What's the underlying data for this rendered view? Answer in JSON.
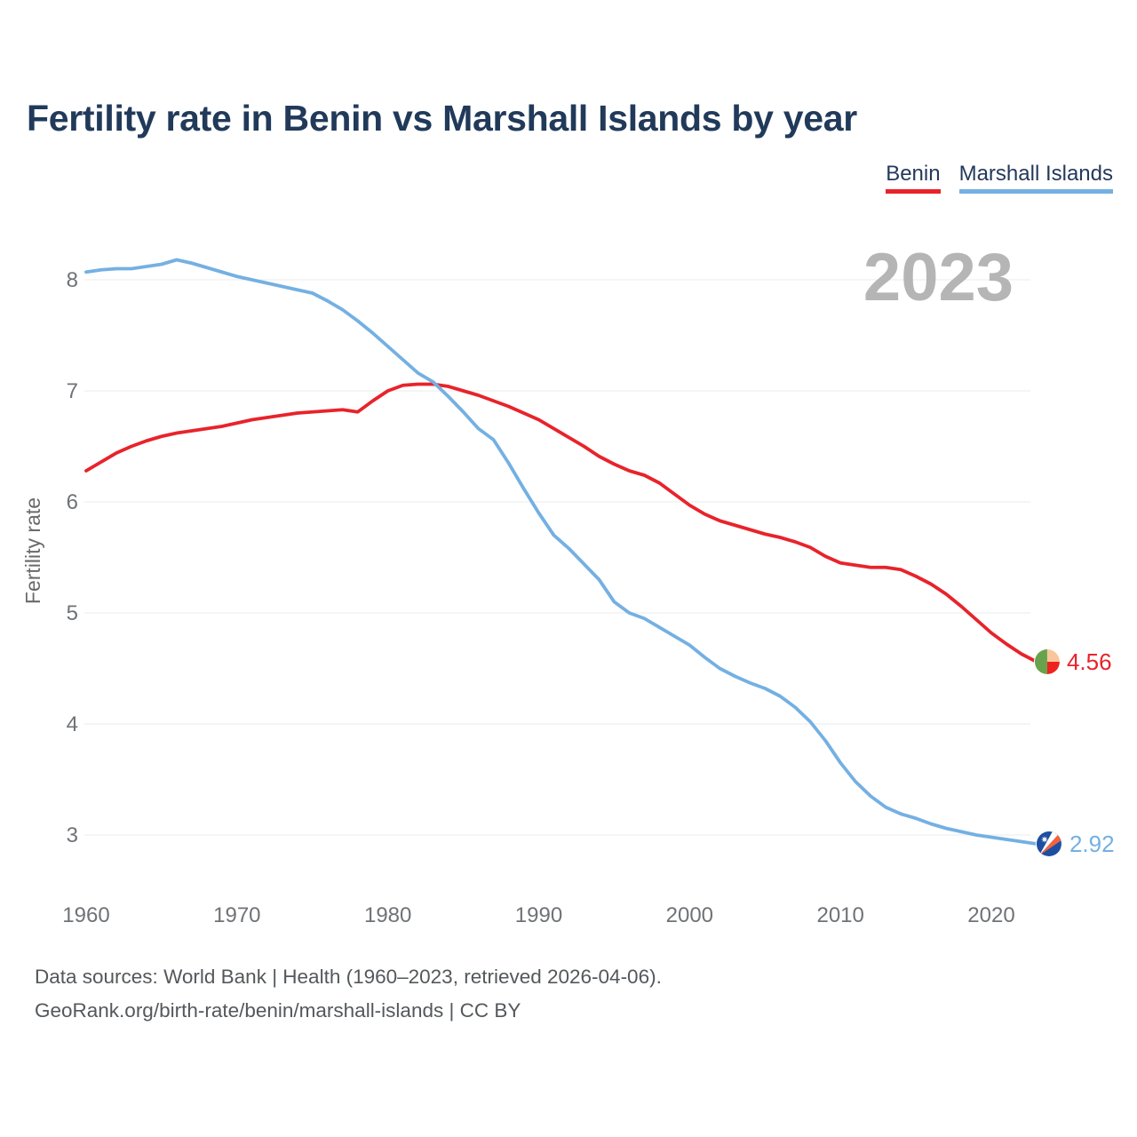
{
  "title": "Fertility rate in Benin vs Marshall Islands by year",
  "watermark_year": "2023",
  "legend": [
    {
      "label": "Benin",
      "color": "#e8232b"
    },
    {
      "label": "Marshall Islands",
      "color": "#74b0e2"
    }
  ],
  "icons": {
    "benin_flag": "benin-flag-icon",
    "marshall_islands_flag": "marshall-islands-flag-icon"
  },
  "colors": {
    "benin_line": "#e8232b",
    "marshall_line": "#74b0e2",
    "title_text": "#213a5a",
    "grid": "#ebebeb",
    "axis_text": "#6f7276",
    "watermark": "#b5b5b5",
    "footer_text": "#54585b",
    "benin_flag_green": "#68a24c",
    "benin_flag_peach": "#f9c69c",
    "benin_flag_red": "#ee2321",
    "marshall_flag_blue": "#1d4fa1",
    "marshall_flag_orange": "#f4633f"
  },
  "footer": {
    "line1": "Data sources: World Bank | Health (1960–2023, retrieved 2026-04-06).",
    "line2": "GeoRank.org/birth-rate/benin/marshall-islands | CC BY"
  },
  "chart_data": {
    "type": "line",
    "title": "Fertility rate in Benin vs Marshall Islands by year",
    "xlabel": "",
    "ylabel": "Fertility rate",
    "grid": "horizontal",
    "legend_position": "top-right",
    "current_year_label": "2023",
    "xlim": [
      1960,
      2023
    ],
    "ylim": [
      2.6,
      8.45
    ],
    "xticks": [
      1960,
      1970,
      1980,
      1990,
      2000,
      2010,
      2020
    ],
    "yticks": [
      3,
      4,
      5,
      6,
      7,
      8
    ],
    "x": [
      1960,
      1961,
      1962,
      1963,
      1964,
      1965,
      1966,
      1967,
      1968,
      1969,
      1970,
      1971,
      1972,
      1973,
      1974,
      1975,
      1976,
      1977,
      1978,
      1979,
      1980,
      1981,
      1982,
      1983,
      1984,
      1985,
      1986,
      1987,
      1988,
      1989,
      1990,
      1991,
      1992,
      1993,
      1994,
      1995,
      1996,
      1997,
      1998,
      1999,
      2000,
      2001,
      2002,
      2003,
      2004,
      2005,
      2006,
      2007,
      2008,
      2009,
      2010,
      2011,
      2012,
      2013,
      2014,
      2015,
      2016,
      2017,
      2018,
      2019,
      2020,
      2021,
      2022,
      2023
    ],
    "series": [
      {
        "name": "Benin",
        "color": "#e8232b",
        "end_label": "4.56",
        "end_value": 4.56,
        "values": [
          6.28,
          6.36,
          6.44,
          6.5,
          6.55,
          6.59,
          6.62,
          6.64,
          6.66,
          6.68,
          6.71,
          6.74,
          6.76,
          6.78,
          6.8,
          6.81,
          6.82,
          6.83,
          6.81,
          6.91,
          7.0,
          7.05,
          7.06,
          7.06,
          7.04,
          7.0,
          6.96,
          6.91,
          6.86,
          6.8,
          6.74,
          6.66,
          6.58,
          6.5,
          6.41,
          6.34,
          6.28,
          6.24,
          6.17,
          6.07,
          5.97,
          5.89,
          5.83,
          5.79,
          5.75,
          5.71,
          5.68,
          5.64,
          5.59,
          5.51,
          5.45,
          5.43,
          5.41,
          5.41,
          5.39,
          5.33,
          5.26,
          5.17,
          5.06,
          4.94,
          4.82,
          4.72,
          4.63,
          4.56
        ]
      },
      {
        "name": "Marshall Islands",
        "color": "#74b0e2",
        "end_label": "2.92",
        "end_value": 2.92,
        "values": [
          8.07,
          8.09,
          8.1,
          8.1,
          8.12,
          8.14,
          8.18,
          8.15,
          8.11,
          8.07,
          8.03,
          8.0,
          7.97,
          7.94,
          7.91,
          7.88,
          7.81,
          7.73,
          7.63,
          7.52,
          7.4,
          7.28,
          7.16,
          7.08,
          6.95,
          6.81,
          6.66,
          6.56,
          6.35,
          6.12,
          5.9,
          5.7,
          5.58,
          5.44,
          5.3,
          5.1,
          5.0,
          4.95,
          4.87,
          4.79,
          4.71,
          4.6,
          4.5,
          4.43,
          4.37,
          4.32,
          4.25,
          4.15,
          4.02,
          3.85,
          3.65,
          3.48,
          3.35,
          3.25,
          3.19,
          3.15,
          3.1,
          3.06,
          3.03,
          3.0,
          2.98,
          2.96,
          2.94,
          2.92
        ]
      }
    ]
  }
}
